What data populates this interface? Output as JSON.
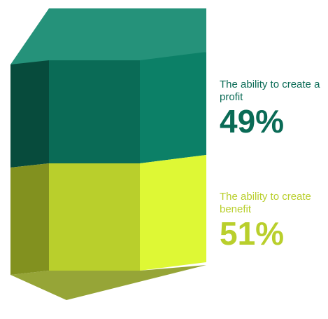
{
  "chart_data": {
    "type": "stacked-box",
    "categories": [
      "The ability to create a profit",
      "The ability to create benefit"
    ],
    "values": [
      49,
      51
    ],
    "value_labels": [
      "49%",
      "51%"
    ],
    "colors": [
      "#0a6b56",
      "#b9cf2c"
    ]
  }
}
